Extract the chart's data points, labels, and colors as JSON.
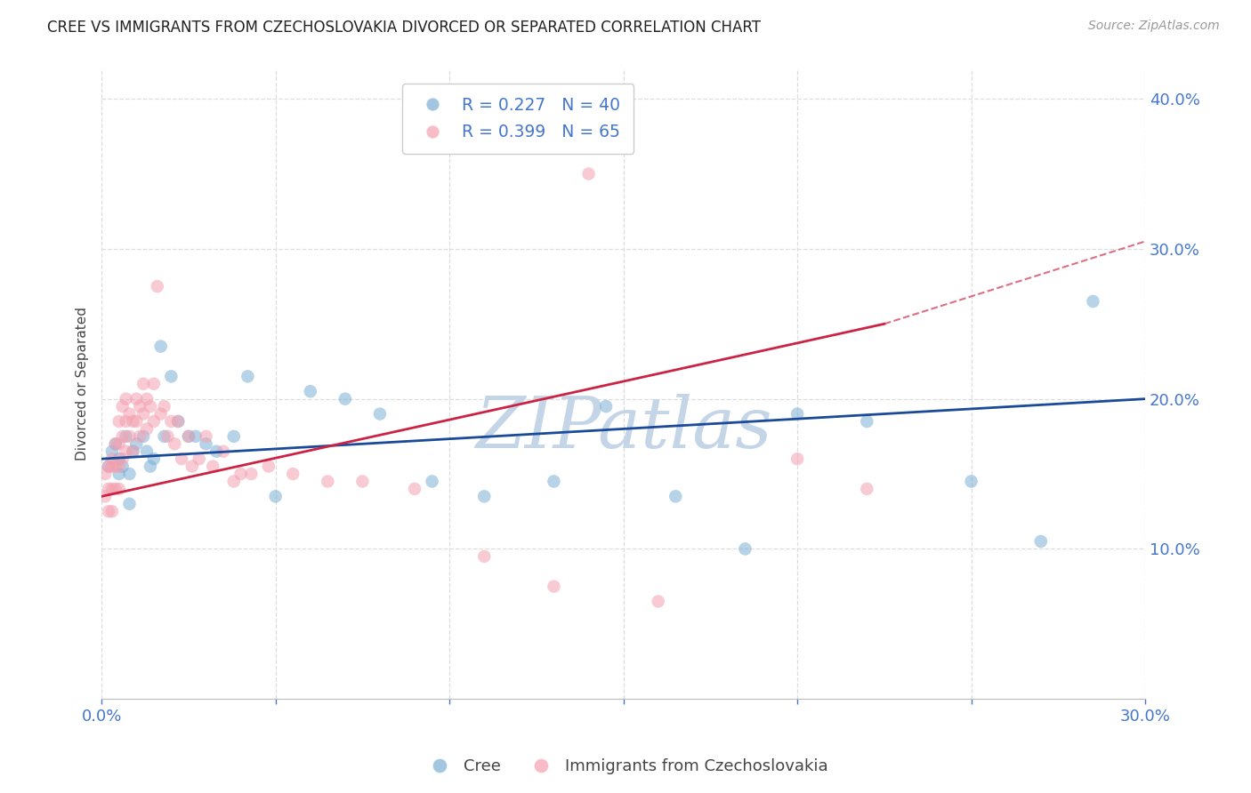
{
  "title": "CREE VS IMMIGRANTS FROM CZECHOSLOVAKIA DIVORCED OR SEPARATED CORRELATION CHART",
  "source_text": "Source: ZipAtlas.com",
  "ylabel": "Divorced or Separated",
  "legend_labels": [
    "Cree",
    "Immigrants from Czechoslovakia"
  ],
  "legend_entries": [
    {
      "R": 0.227,
      "N": 40
    },
    {
      "R": 0.399,
      "N": 65
    }
  ],
  "blue_color": "#7BAFD4",
  "pink_color": "#F4A0B0",
  "trend_blue": "#1A4A9A",
  "trend_pink": "#CC2244",
  "axis_color": "#4477CC",
  "xlim": [
    0.0,
    0.3
  ],
  "ylim": [
    0.0,
    0.42
  ],
  "xticks": [
    0.0,
    0.05,
    0.1,
    0.15,
    0.2,
    0.25,
    0.3
  ],
  "yticks_right": [
    0.1,
    0.2,
    0.3,
    0.4
  ],
  "background_color": "#FFFFFF",
  "watermark": "ZIPatlas",
  "watermark_color": "#C5D5E8",
  "blue_scatter_x": [
    0.002,
    0.003,
    0.004,
    0.005,
    0.006,
    0.007,
    0.008,
    0.009,
    0.01,
    0.012,
    0.013,
    0.015,
    0.017,
    0.018,
    0.02,
    0.022,
    0.025,
    0.027,
    0.03,
    0.033,
    0.038,
    0.042,
    0.05,
    0.06,
    0.07,
    0.08,
    0.095,
    0.11,
    0.13,
    0.145,
    0.165,
    0.185,
    0.2,
    0.22,
    0.25,
    0.27,
    0.285,
    0.005,
    0.008,
    0.014
  ],
  "blue_scatter_y": [
    0.155,
    0.165,
    0.17,
    0.16,
    0.155,
    0.175,
    0.15,
    0.165,
    0.17,
    0.175,
    0.165,
    0.16,
    0.235,
    0.175,
    0.215,
    0.185,
    0.175,
    0.175,
    0.17,
    0.165,
    0.175,
    0.215,
    0.135,
    0.205,
    0.2,
    0.19,
    0.145,
    0.135,
    0.145,
    0.195,
    0.135,
    0.1,
    0.19,
    0.185,
    0.145,
    0.105,
    0.265,
    0.15,
    0.13,
    0.155
  ],
  "pink_scatter_x": [
    0.001,
    0.001,
    0.002,
    0.002,
    0.002,
    0.003,
    0.003,
    0.003,
    0.003,
    0.004,
    0.004,
    0.004,
    0.005,
    0.005,
    0.005,
    0.005,
    0.006,
    0.006,
    0.006,
    0.007,
    0.007,
    0.007,
    0.008,
    0.008,
    0.009,
    0.009,
    0.01,
    0.01,
    0.011,
    0.011,
    0.012,
    0.012,
    0.013,
    0.013,
    0.014,
    0.015,
    0.015,
    0.016,
    0.017,
    0.018,
    0.019,
    0.02,
    0.021,
    0.022,
    0.023,
    0.025,
    0.026,
    0.028,
    0.03,
    0.032,
    0.035,
    0.038,
    0.04,
    0.043,
    0.048,
    0.055,
    0.065,
    0.075,
    0.09,
    0.11,
    0.13,
    0.16,
    0.2,
    0.22,
    0.14
  ],
  "pink_scatter_y": [
    0.15,
    0.135,
    0.155,
    0.14,
    0.125,
    0.16,
    0.155,
    0.14,
    0.125,
    0.17,
    0.155,
    0.14,
    0.185,
    0.17,
    0.155,
    0.14,
    0.195,
    0.175,
    0.16,
    0.2,
    0.185,
    0.165,
    0.19,
    0.175,
    0.185,
    0.165,
    0.2,
    0.185,
    0.195,
    0.175,
    0.21,
    0.19,
    0.2,
    0.18,
    0.195,
    0.21,
    0.185,
    0.275,
    0.19,
    0.195,
    0.175,
    0.185,
    0.17,
    0.185,
    0.16,
    0.175,
    0.155,
    0.16,
    0.175,
    0.155,
    0.165,
    0.145,
    0.15,
    0.15,
    0.155,
    0.15,
    0.145,
    0.145,
    0.14,
    0.095,
    0.075,
    0.065,
    0.16,
    0.14,
    0.35
  ],
  "blue_trend_x0": 0.0,
  "blue_trend_x1": 0.3,
  "blue_trend_y0": 0.16,
  "blue_trend_y1": 0.2,
  "pink_trend_x0": 0.0,
  "pink_trend_x1": 0.225,
  "pink_trend_x1_dash": 0.3,
  "pink_trend_y0": 0.135,
  "pink_trend_y1": 0.25,
  "pink_trend_y1_dash": 0.305
}
